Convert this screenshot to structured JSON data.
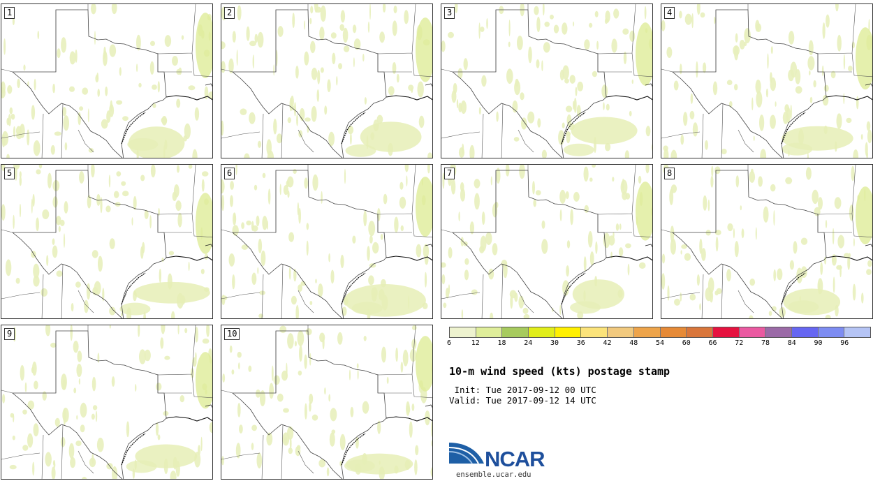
{
  "panels": [
    {
      "label": "1"
    },
    {
      "label": "2"
    },
    {
      "label": "3"
    },
    {
      "label": "4"
    },
    {
      "label": "5"
    },
    {
      "label": "6"
    },
    {
      "label": "7"
    },
    {
      "label": "8"
    },
    {
      "label": "9"
    },
    {
      "label": "10"
    }
  ],
  "colorbar": {
    "colors": [
      "#eef3cf",
      "#dfee9a",
      "#a7cb5e",
      "#e1ee1a",
      "#fff000",
      "#fbe37a",
      "#f1c97e",
      "#eea44a",
      "#e68a37",
      "#d9763b",
      "#e6123f",
      "#ea59a1",
      "#9b6aa7",
      "#6666f2",
      "#7d8cf2",
      "#b5c4f5"
    ],
    "ticks": [
      "6",
      "12",
      "18",
      "24",
      "30",
      "36",
      "42",
      "48",
      "54",
      "60",
      "66",
      "72",
      "78",
      "84",
      "90",
      "96"
    ]
  },
  "title": "10-m wind speed (kts) postage stamp",
  "init": " Init: Tue 2017-09-12 00 UTC",
  "valid": "Valid: Tue 2017-09-12 14 UTC",
  "logo": {
    "text": "NCAR",
    "url": "ensemble.ucar.edu"
  }
}
